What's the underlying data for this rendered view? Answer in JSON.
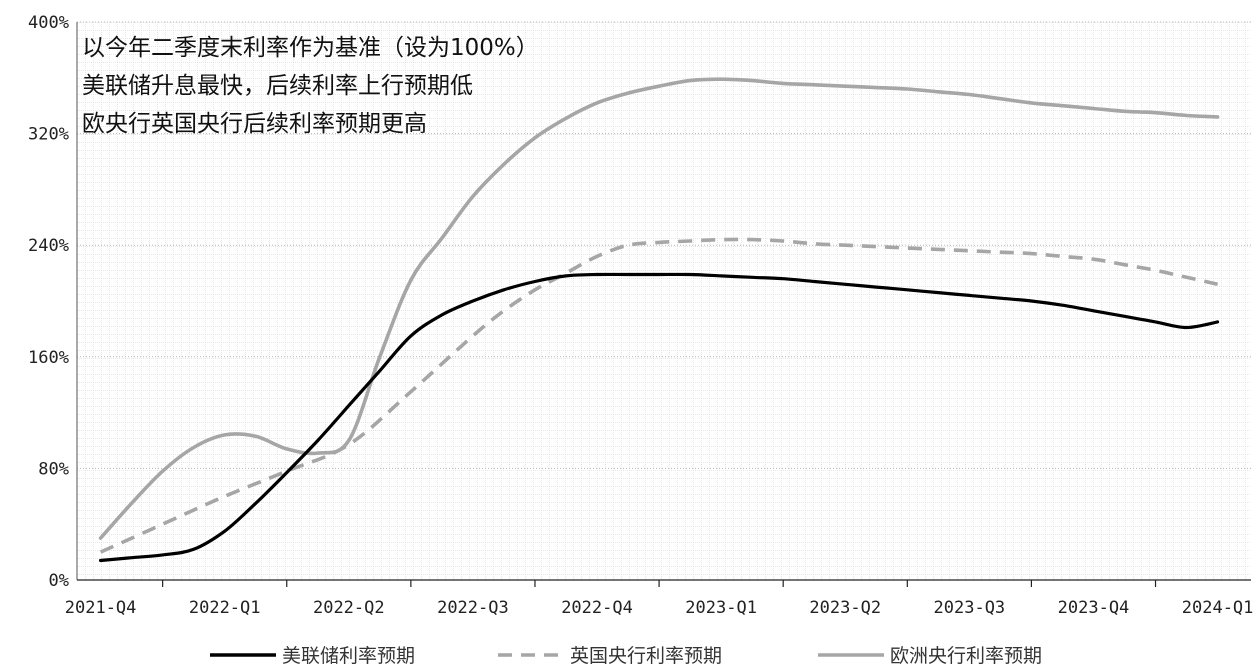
{
  "chart_data": {
    "type": "line",
    "categories": [
      "2021-Q4",
      "2022-Q1",
      "2022-Q2",
      "2022-Q3",
      "2022-Q4",
      "2023-Q1",
      "2023-Q2",
      "2023-Q3",
      "2023-Q4",
      "2024-Q1"
    ],
    "ylim": [
      0,
      400
    ],
    "yticks": [
      0,
      80,
      160,
      240,
      320,
      400
    ],
    "ytick_labels": [
      "0%",
      "80%",
      "160%",
      "240%",
      "320%",
      "400%"
    ],
    "grid": true,
    "legend_position": "bottom",
    "annotations": [
      "以今年二季度末利率作为基准（设为100%）",
      "美联储升息最快，后续利率上行预期低",
      "欧央行英国央行后续利率预期更高"
    ],
    "series": [
      {
        "name": "美联储利率预期",
        "color": "#000000",
        "dash": "solid",
        "x": [
          0,
          0.25,
          0.5,
          0.75,
          1.0,
          1.25,
          1.5,
          1.75,
          2.0,
          2.25,
          2.5,
          2.75,
          3.0,
          3.25,
          3.5,
          3.75,
          4.0,
          4.25,
          4.5,
          4.75,
          5.0,
          5.25,
          5.5,
          5.75,
          6.0,
          6.25,
          6.5,
          6.75,
          7.0,
          7.25,
          7.5,
          7.75,
          8.0,
          8.25,
          8.5,
          8.75,
          9.0
        ],
        "y": [
          14,
          16,
          18,
          22,
          35,
          55,
          77,
          100,
          125,
          150,
          175,
          190,
          200,
          208,
          214,
          218,
          219,
          219,
          219,
          219,
          218,
          217,
          216,
          214,
          212,
          210,
          208,
          206,
          204,
          202,
          200,
          197,
          193,
          189,
          185,
          181,
          185
        ]
      },
      {
        "name": "英国央行利率预期",
        "color": "#a6a6a6",
        "dash": "dashed",
        "x": [
          0,
          0.5,
          1.0,
          1.5,
          2.0,
          2.5,
          3.0,
          3.25,
          3.5,
          3.75,
          4.0,
          4.25,
          4.5,
          4.75,
          5.0,
          5.25,
          5.5,
          5.75,
          6.0,
          6.25,
          6.5,
          6.75,
          7.0,
          7.25,
          7.5,
          7.75,
          8.0,
          8.25,
          8.5,
          8.75,
          9.0
        ],
        "y": [
          20,
          40,
          60,
          78,
          97,
          135,
          175,
          193,
          208,
          220,
          232,
          240,
          242,
          243,
          244,
          244,
          243,
          241,
          240,
          239,
          238,
          237,
          236,
          235,
          234,
          232,
          230,
          226,
          222,
          217,
          212
        ]
      },
      {
        "name": "欧洲央行利率预期",
        "color": "#a6a6a6",
        "dash": "solid",
        "x": [
          0,
          0.25,
          0.5,
          0.75,
          1.0,
          1.25,
          1.5,
          1.75,
          2.0,
          2.25,
          2.5,
          2.75,
          3.0,
          3.25,
          3.5,
          3.75,
          4.0,
          4.25,
          4.5,
          4.75,
          5.0,
          5.25,
          5.5,
          5.75,
          6.0,
          6.25,
          6.5,
          6.75,
          7.0,
          7.25,
          7.5,
          7.75,
          8.0,
          8.25,
          8.5,
          8.75,
          9.0
        ],
        "y": [
          30,
          55,
          78,
          95,
          104,
          103,
          94,
          91,
          100,
          160,
          215,
          245,
          275,
          298,
          317,
          331,
          342,
          349,
          354,
          358,
          359,
          358,
          356,
          355,
          354,
          353,
          352,
          350,
          348,
          345,
          342,
          340,
          338,
          336,
          335,
          333,
          332
        ]
      }
    ]
  }
}
